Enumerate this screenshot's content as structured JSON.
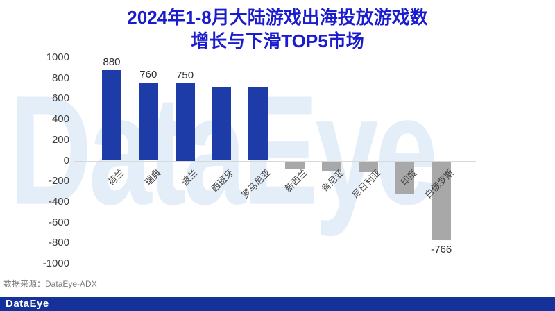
{
  "title": {
    "line1": "2024年1-8月大陆游戏出海投放游戏数",
    "line2": "增长与下滑TOP5市场"
  },
  "watermark": "DataEye",
  "source": {
    "label": "数据来源：",
    "value": "DataEye-ADX"
  },
  "footer": {
    "logo": "DataEye"
  },
  "colors": {
    "title_blue": "#1b1ccd",
    "bar_positive": "#1e3ca8",
    "bar_negative": "#a8a8a8",
    "axis_text": "#3f3f3f",
    "axis_line": "#d8d8d8",
    "watermark": "#e4eef9",
    "footer_bg": "#17319b"
  },
  "chart_data": {
    "type": "bar",
    "title": "2024年1-8月大陆游戏出海投放游戏数增长与下滑TOP5市场",
    "categories": [
      "荷兰",
      "瑞典",
      "波兰",
      "西班牙",
      "罗马尼亚",
      "新西兰",
      "肯尼亚",
      "尼日利亚",
      "印度",
      "白俄罗斯"
    ],
    "values": [
      880,
      760,
      750,
      720,
      715,
      -80,
      -95,
      -105,
      -310,
      -766
    ],
    "data_labels": [
      "880",
      "760",
      "750",
      "",
      "",
      "",
      "",
      "",
      "",
      "-766"
    ],
    "xlabel": "",
    "ylabel": "",
    "ylim": [
      -1000,
      1000
    ],
    "yticks": [
      1000,
      800,
      600,
      400,
      200,
      0,
      -200,
      -400,
      -600,
      -800,
      -1000
    ],
    "grid": false,
    "legend": "none",
    "positive_color": "#1e3ca8",
    "negative_color": "#a8a8a8"
  }
}
